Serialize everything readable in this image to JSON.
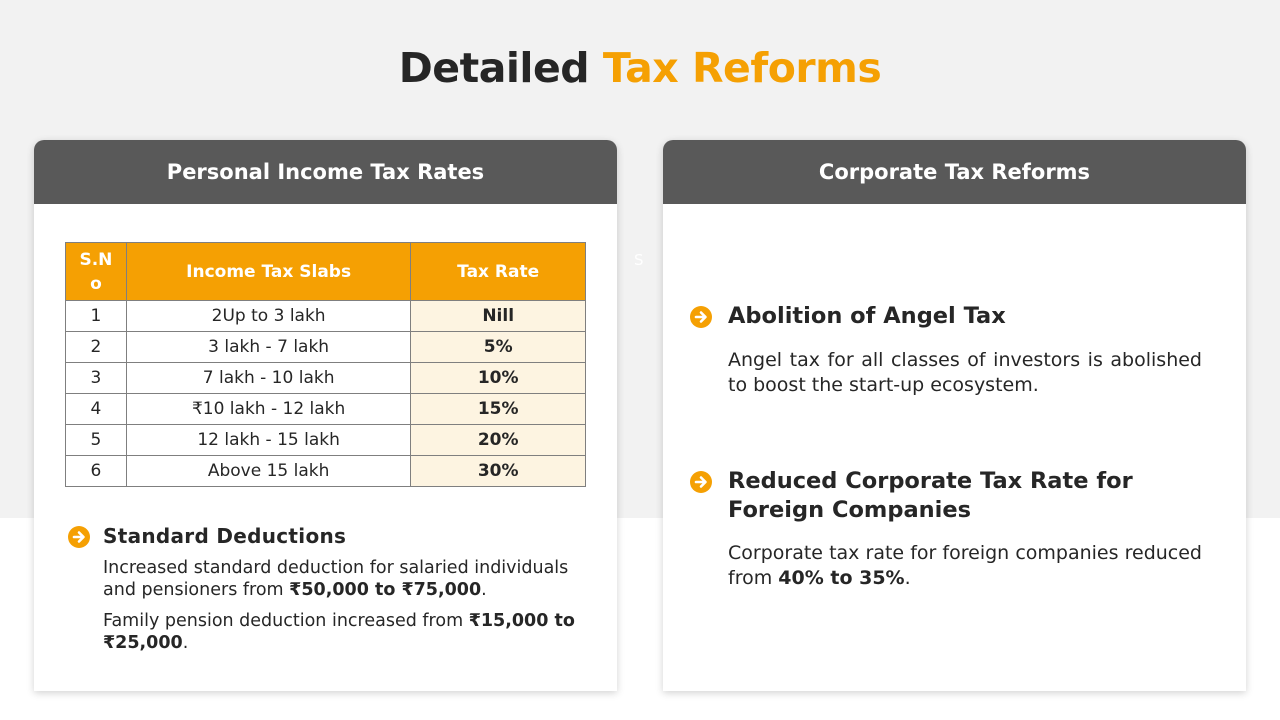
{
  "title": {
    "main": "Detailed",
    "accent": "Tax Reforms"
  },
  "colors": {
    "accent": "#f5a003",
    "header": "#595959",
    "rate_bg": "#fdf4e1"
  },
  "stray_char": "S",
  "left_card": {
    "header": "Personal Income Tax Rates",
    "table": {
      "headers": [
        "S.N\no",
        "Income Tax Slabs",
        "Tax Rate"
      ],
      "rows": [
        {
          "sn": "1",
          "slab": "2Up to 3 lakh",
          "rate": "Nill"
        },
        {
          "sn": "2",
          "slab": "3 lakh - 7 lakh",
          "rate": "5%"
        },
        {
          "sn": "3",
          "slab": "7 lakh - 10 lakh",
          "rate": "10%"
        },
        {
          "sn": "4",
          "slab": "₹10 lakh - 12 lakh",
          "rate": "15%"
        },
        {
          "sn": "5",
          "slab": "12 lakh - 15 lakh",
          "rate": "20%"
        },
        {
          "sn": "6",
          "slab": "Above 15 lakh",
          "rate": "30%"
        }
      ]
    },
    "deductions": {
      "icon": "arrow-right-circle-icon",
      "title": "Standard  Deductions",
      "line1_text": "Increased standard deduction for salaried individuals and pensioners from ",
      "line1_bold": "₹50,000 to ₹75,000",
      "line1_end": ".",
      "line2_text": "Family pension deduction increased from ",
      "line2_bold": "₹15,000 to ₹25,000",
      "line2_end": "."
    }
  },
  "right_card": {
    "header": "Corporate Tax Reforms",
    "items": [
      {
        "icon": "arrow-right-circle-icon",
        "title": "Abolition of Angel Tax",
        "text": "Angel tax for all classes of investors is abolished to boost the start-up ecosystem."
      },
      {
        "icon": "arrow-right-circle-icon",
        "title": "Reduced Corporate Tax Rate for Foreign Companies",
        "text_pre": "Corporate tax rate for foreign companies reduced from ",
        "text_bold": "40% to 35%",
        "text_post": "."
      }
    ]
  }
}
